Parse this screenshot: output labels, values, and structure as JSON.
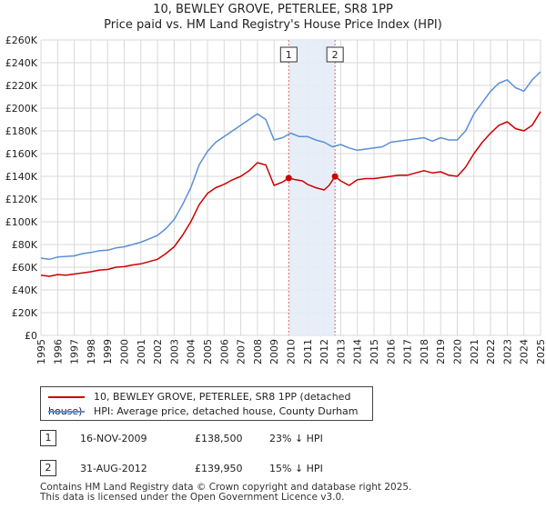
{
  "title_line1": "10, BEWLEY GROVE, PETERLEE, SR8 1PP",
  "title_line2": "Price paid vs. HM Land Registry's House Price Index (HPI)",
  "chart_data": {
    "type": "line",
    "title": "10, BEWLEY GROVE, PETERLEE, SR8 1PP — Price paid vs. HM Land Registry's House Price Index (HPI)",
    "xlabel": "",
    "ylabel": "",
    "xlim": [
      1995,
      2025
    ],
    "ylim": [
      0,
      260000
    ],
    "y_ticks": [
      0,
      20000,
      40000,
      60000,
      80000,
      100000,
      120000,
      140000,
      160000,
      180000,
      200000,
      220000,
      240000,
      260000
    ],
    "y_tick_labels": [
      "£0",
      "£20K",
      "£40K",
      "£60K",
      "£80K",
      "£100K",
      "£120K",
      "£140K",
      "£160K",
      "£180K",
      "£200K",
      "£220K",
      "£240K",
      "£260K"
    ],
    "x_ticks": [
      "1995",
      "1996",
      "1997",
      "1998",
      "1999",
      "2000",
      "2001",
      "2002",
      "2003",
      "2004",
      "2005",
      "2006",
      "2007",
      "2008",
      "2009",
      "2010",
      "2011",
      "2012",
      "2013",
      "2014",
      "2015",
      "2016",
      "2017",
      "2018",
      "2019",
      "2020",
      "2021",
      "2022",
      "2023",
      "2024",
      "2025"
    ],
    "grid": true,
    "highlight_band": [
      2009.88,
      2012.66
    ],
    "series": [
      {
        "name": "10, BEWLEY GROVE, PETERLEE, SR8 1PP (detached house)",
        "color": "#cc0000",
        "x": [
          1995,
          1995.5,
          1996,
          1996.5,
          1997,
          1997.5,
          1998,
          1998.5,
          1999,
          1999.5,
          2000,
          2000.5,
          2001,
          2001.5,
          2002,
          2002.5,
          2003,
          2003.5,
          2004,
          2004.5,
          2005,
          2005.5,
          2006,
          2006.5,
          2007,
          2007.5,
          2008,
          2008.5,
          2009,
          2009.5,
          2009.88,
          2010.3,
          2010.7,
          2011,
          2011.5,
          2012,
          2012.3,
          2012.66,
          2013,
          2013.5,
          2014,
          2014.5,
          2015,
          2015.5,
          2016,
          2016.5,
          2017,
          2017.5,
          2018,
          2018.5,
          2019,
          2019.5,
          2020,
          2020.5,
          2021,
          2021.5,
          2022,
          2022.5,
          2023,
          2023.5,
          2024,
          2024.5,
          2025
        ],
        "values": [
          53000,
          52000,
          53500,
          53000,
          54000,
          55000,
          56000,
          57500,
          58000,
          60000,
          60500,
          62000,
          63000,
          65000,
          67000,
          72000,
          78000,
          88000,
          100000,
          115000,
          125000,
          130000,
          133000,
          137000,
          140000,
          145000,
          152000,
          150000,
          132000,
          135000,
          138500,
          137000,
          136000,
          133000,
          130000,
          128000,
          132000,
          139950,
          136000,
          132000,
          137000,
          138000,
          138000,
          139000,
          140000,
          141000,
          141000,
          143000,
          145000,
          143000,
          144000,
          141000,
          140000,
          148000,
          160000,
          170000,
          178000,
          185000,
          188000,
          182000,
          180000,
          185000,
          197000
        ]
      },
      {
        "name": "HPI: Average price, detached house, County Durham",
        "color": "#5b8fd6",
        "x": [
          1995,
          1995.5,
          1996,
          1996.5,
          1997,
          1997.5,
          1998,
          1998.5,
          1999,
          1999.5,
          2000,
          2000.5,
          2001,
          2001.5,
          2002,
          2002.5,
          2003,
          2003.5,
          2004,
          2004.5,
          2005,
          2005.5,
          2006,
          2006.5,
          2007,
          2007.5,
          2008,
          2008.5,
          2009,
          2009.5,
          2010,
          2010.5,
          2011,
          2011.5,
          2012,
          2012.5,
          2013,
          2013.5,
          2014,
          2014.5,
          2015,
          2015.5,
          2016,
          2016.5,
          2017,
          2017.5,
          2018,
          2018.5,
          2019,
          2019.5,
          2020,
          2020.5,
          2021,
          2021.5,
          2022,
          2022.5,
          2023,
          2023.5,
          2024,
          2024.5,
          2025
        ],
        "values": [
          68000,
          67000,
          69000,
          69500,
          70000,
          72000,
          73000,
          74500,
          75000,
          77000,
          78000,
          80000,
          82000,
          85000,
          88000,
          94000,
          102000,
          115000,
          130000,
          150000,
          162000,
          170000,
          175000,
          180000,
          185000,
          190000,
          195000,
          190000,
          172000,
          174000,
          178000,
          175000,
          175000,
          172000,
          170000,
          166000,
          168000,
          165000,
          163000,
          164000,
          165000,
          166000,
          170000,
          171000,
          172000,
          173000,
          174000,
          171000,
          174000,
          172000,
          172000,
          180000,
          195000,
          205000,
          215000,
          222000,
          225000,
          218000,
          215000,
          225000,
          232000
        ]
      }
    ],
    "annotations": [
      {
        "label": "1",
        "x": 2009.88,
        "value": 138500
      },
      {
        "label": "2",
        "x": 2012.66,
        "value": 139950
      }
    ]
  },
  "legend": {
    "items": [
      {
        "label": "10, BEWLEY GROVE, PETERLEE, SR8 1PP (detached house)",
        "color": "#cc0000"
      },
      {
        "label": "HPI: Average price, detached house, County Durham",
        "color": "#5b8fd6"
      }
    ]
  },
  "sales": [
    {
      "num": "1",
      "date": "16-NOV-2009",
      "price": "£138,500",
      "hpi": "23% ↓ HPI"
    },
    {
      "num": "2",
      "date": "31-AUG-2012",
      "price": "£139,950",
      "hpi": "15% ↓ HPI"
    }
  ],
  "footer": {
    "line1": "Contains HM Land Registry data © Crown copyright and database right 2025.",
    "line2": "This data is licensed under the Open Government Licence v3.0."
  }
}
